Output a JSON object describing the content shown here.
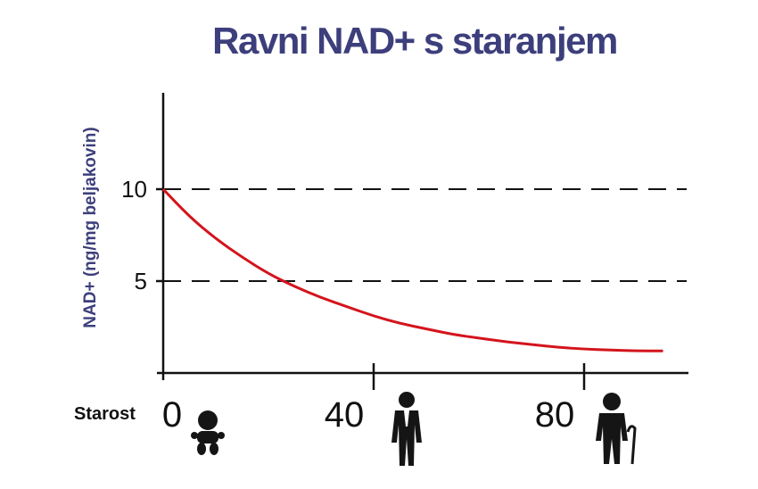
{
  "chart_data": {
    "type": "line",
    "title": "Ravni NAD+ s staranjem",
    "ylabel": "NAD+ (ng/mg beljakovin)",
    "xlabel": "Starost",
    "xlim": [
      0,
      100
    ],
    "ylim": [
      0,
      15
    ],
    "x_ticks": [
      0,
      40,
      80
    ],
    "y_ticks": [
      5,
      10
    ],
    "grid": "dashed reference lines at 5 and 10",
    "series": [
      {
        "color": "#d4141c",
        "x": [
          0,
          5,
          10,
          15,
          20,
          25,
          30,
          35,
          40,
          45,
          50,
          55,
          60,
          65,
          70,
          75,
          80,
          85,
          90,
          95
        ],
        "y": [
          10.0,
          8.5,
          7.3,
          6.3,
          5.4,
          4.7,
          4.1,
          3.6,
          3.1,
          2.7,
          2.4,
          2.1,
          1.9,
          1.7,
          1.55,
          1.4,
          1.3,
          1.25,
          1.2,
          1.2
        ]
      }
    ],
    "age_icons": [
      "baby-icon",
      "adult-man-icon",
      "elderly-man-icon"
    ]
  }
}
